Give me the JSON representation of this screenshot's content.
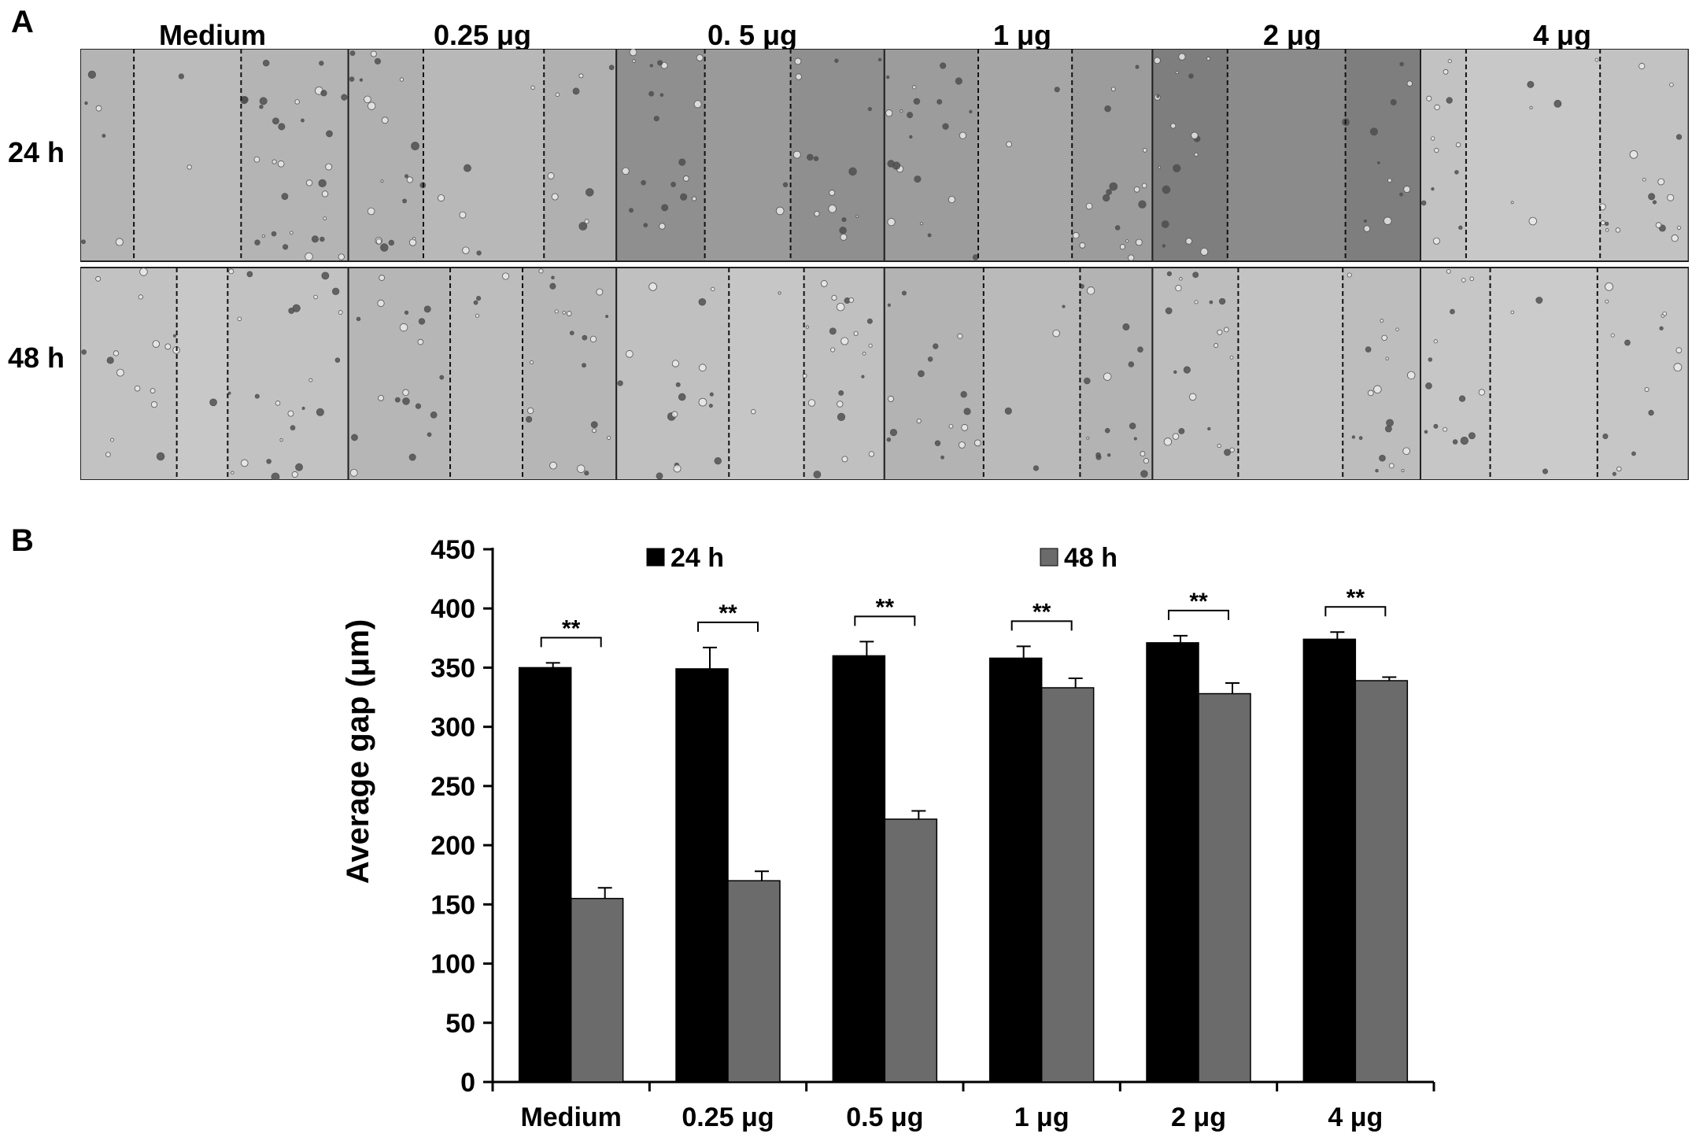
{
  "panel_a": {
    "letter": "A",
    "columns": [
      "Medium",
      "0.25 μg",
      "0. 5 μg",
      "1 μg",
      "2 μg",
      "4 μg"
    ],
    "rows": [
      "24 h",
      "48 h"
    ]
  },
  "panel_b": {
    "letter": "B"
  },
  "chart_data": {
    "type": "bar",
    "title": "",
    "xlabel": "",
    "ylabel": "Average gap (μm)",
    "categories": [
      "Medium",
      "0.25 μg",
      "0.5 μg",
      "1 μg",
      "2 μg",
      "4 μg"
    ],
    "ylim": [
      0,
      450
    ],
    "yticks": [
      0,
      50,
      100,
      150,
      200,
      250,
      300,
      350,
      400,
      450
    ],
    "legend_position": "top",
    "grid": false,
    "series": [
      {
        "name": "24 h",
        "color": "#000000",
        "values": [
          350,
          349,
          360,
          358,
          371,
          374
        ],
        "errors": [
          4,
          18,
          12,
          10,
          6,
          6
        ]
      },
      {
        "name": "48 h",
        "color": "#6b6b6b",
        "values": [
          155,
          170,
          222,
          333,
          328,
          339
        ],
        "errors": [
          9,
          8,
          7,
          8,
          9,
          3
        ]
      }
    ],
    "significance": {
      "label": "**",
      "pairs": [
        0,
        1,
        2,
        3,
        4,
        5
      ]
    }
  }
}
